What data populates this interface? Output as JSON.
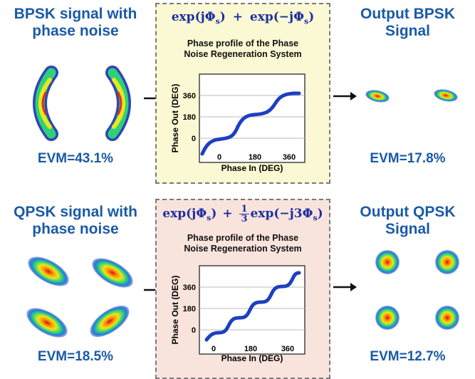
{
  "top": {
    "input_title": "BPSK signal with phase noise",
    "input_title_line1": "BPSK signal with",
    "input_title_line2": "phase noise",
    "input_evm": "EVM=43.1%",
    "output_title_line1": "Output BPSK",
    "output_title_line2": "Signal",
    "output_evm": "EVM=17.8%",
    "formula": {
      "term1": "exp(jΦ",
      "term1_sub": "s",
      "term1_end": ")",
      "op": "+",
      "term2": "exp(−jΦ",
      "term2_sub": "s",
      "term2_end": ")"
    },
    "plot": {
      "title_line1": "Phase profile of the Phase",
      "title_line2": "Noise Regeneration System",
      "xlabel": "Phase In (DEG)",
      "ylabel": "Phase Out (DEG)",
      "xticks": [
        "0",
        "180",
        "360"
      ],
      "yticks": [
        "0",
        "180",
        "360"
      ]
    }
  },
  "bottom": {
    "input_title_line1": "QPSK signal with",
    "input_title_line2": "phase noise",
    "input_evm": "EVM=18.5%",
    "output_title_line1": "Output QPSK",
    "output_title_line2": "Signal",
    "output_evm": "EVM=12.7%",
    "formula": {
      "term1": "exp(jΦ",
      "term1_sub": "s",
      "term1_end": ")",
      "op": "+",
      "frac_num": "1",
      "frac_den": "3",
      "term2": "exp(−j3Φ",
      "term2_sub": "s",
      "term2_end": ")"
    },
    "plot": {
      "title_line1": "Phase profile of the Phase",
      "title_line2": "Noise Regeneration System",
      "xlabel": "Phase In (DEG)",
      "ylabel": "Phase Out (DEG)",
      "xticks": [
        "0",
        "180",
        "360"
      ],
      "yticks": [
        "0",
        "180",
        "360"
      ]
    }
  },
  "colors": {
    "title_blue": "#1a5aa6",
    "formula_blue": "#1e2f9e",
    "curve": "#1f3fbf",
    "top_box_bg": "#fbf9d3",
    "bottom_box_bg": "#f9e4dd"
  }
}
